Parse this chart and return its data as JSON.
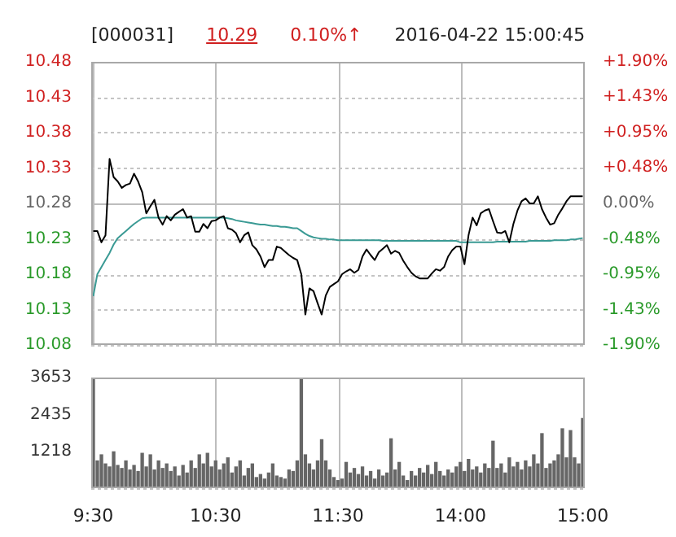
{
  "chart_data": [
    {
      "type": "line",
      "title": "[000031]",
      "annotations": [
        "10.29",
        "0.10%↑",
        "2016-04-22 15:00:45"
      ],
      "categories": [
        null,
        null,
        null,
        null,
        null,
        null,
        null,
        null,
        null,
        null,
        null,
        null,
        null,
        null,
        null,
        null,
        null,
        null,
        null,
        null,
        null,
        null,
        null,
        null,
        null,
        null,
        null,
        null,
        null,
        null,
        null,
        null,
        null,
        null,
        null,
        null,
        null,
        null,
        null,
        null,
        null,
        null,
        null,
        null,
        null,
        null,
        null,
        null,
        null,
        null,
        null,
        null,
        null,
        null,
        null,
        null,
        null,
        null,
        null,
        null,
        null,
        null,
        null,
        null,
        null,
        null,
        null,
        null,
        null,
        null,
        null,
        null,
        null,
        null,
        null,
        null,
        null,
        null,
        null,
        null,
        null,
        null,
        null,
        null,
        null,
        null,
        null,
        null,
        null,
        null,
        null,
        null,
        null,
        null,
        null,
        null,
        null,
        null,
        null,
        null,
        null,
        null,
        null,
        null,
        null,
        null,
        null,
        null,
        null,
        null,
        null,
        null,
        null,
        null,
        null,
        null,
        null,
        null,
        null,
        null,
        null
      ],
      "ylim": [
        10.08,
        10.48
      ],
      "yticks": [
        10.08,
        10.13,
        10.18,
        10.23,
        10.28,
        10.33,
        10.38,
        10.43,
        10.48
      ],
      "y2lim": [
        -1.9,
        1.9
      ],
      "y2ticks": [
        {
          "value": -1.9,
          "label": "-1.90%"
        },
        {
          "value": -1.43,
          "label": "-1.43%"
        },
        {
          "value": -0.95,
          "label": "-0.95%"
        },
        {
          "value": -0.48,
          "label": "-0.48%"
        },
        {
          "value": 0,
          "label": "0.00%"
        },
        {
          "value": 0.48,
          "label": "+0.48%"
        },
        {
          "value": 0.95,
          "label": "+0.95%"
        },
        {
          "value": 1.43,
          "label": "+1.43%"
        },
        {
          "value": 1.9,
          "label": "+1.90%"
        }
      ],
      "tick_labels": "y",
      "grid": true,
      "marker": "none",
      "line_style": "solid",
      "series": [
        {
          "color": "#000000",
          "values": [
            10.241,
            10.241,
            10.225,
            10.235,
            10.343,
            10.317,
            10.311,
            10.302,
            10.306,
            10.308,
            10.322,
            10.311,
            10.296,
            10.266,
            10.276,
            10.285,
            10.26,
            10.25,
            10.262,
            10.256,
            10.264,
            10.268,
            10.272,
            10.26,
            10.262,
            10.24,
            10.24,
            10.251,
            10.245,
            10.255,
            10.256,
            10.26,
            10.262,
            10.245,
            10.243,
            10.238,
            10.225,
            10.235,
            10.239,
            10.221,
            10.215,
            10.205,
            10.19,
            10.2,
            10.2,
            10.219,
            10.217,
            10.212,
            10.207,
            10.203,
            10.2,
            10.18,
            10.123,
            10.16,
            10.156,
            10.139,
            10.123,
            10.15,
            10.162,
            10.166,
            10.17,
            10.18,
            10.184,
            10.187,
            10.182,
            10.186,
            10.205,
            10.215,
            10.207,
            10.2,
            10.211,
            10.216,
            10.221,
            10.209,
            10.213,
            10.21,
            10.199,
            10.19,
            10.182,
            10.177,
            10.174,
            10.174,
            10.174,
            10.181,
            10.187,
            10.185,
            10.19,
            10.205,
            10.214,
            10.219,
            10.219,
            10.194,
            10.235,
            10.26,
            10.249,
            10.266,
            10.27,
            10.272,
            10.255,
            10.239,
            10.238,
            10.241,
            10.225,
            10.251,
            10.27,
            10.283,
            10.287,
            10.28,
            10.28,
            10.29,
            10.272,
            10.26,
            10.25,
            10.252,
            10.264,
            10.273,
            10.283,
            10.29,
            10.29,
            10.29,
            10.29
          ]
        },
        {
          "color": "#3a9a94",
          "values": [
            10.149,
            10.18,
            10.19,
            10.2,
            10.21,
            10.222,
            10.231,
            10.236,
            10.241,
            10.246,
            10.251,
            10.255,
            10.259,
            10.26,
            10.26,
            10.26,
            10.26,
            10.26,
            10.26,
            10.26,
            10.26,
            10.26,
            10.26,
            10.26,
            10.26,
            10.26,
            10.26,
            10.26,
            10.26,
            10.26,
            10.26,
            10.26,
            10.26,
            10.259,
            10.258,
            10.256,
            10.255,
            10.254,
            10.253,
            10.252,
            10.251,
            10.25,
            10.25,
            10.249,
            10.248,
            10.248,
            10.247,
            10.247,
            10.246,
            10.245,
            10.245,
            10.241,
            10.237,
            10.234,
            10.232,
            10.231,
            10.23,
            10.23,
            10.229,
            10.229,
            10.228,
            10.228,
            10.228,
            10.228,
            10.228,
            10.228,
            10.228,
            10.228,
            10.228,
            10.228,
            10.228,
            10.227,
            10.227,
            10.227,
            10.227,
            10.227,
            10.227,
            10.227,
            10.227,
            10.227,
            10.227,
            10.227,
            10.227,
            10.227,
            10.227,
            10.227,
            10.227,
            10.227,
            10.227,
            10.227,
            10.225,
            10.225,
            10.225,
            10.225,
            10.225,
            10.225,
            10.225,
            10.225,
            10.225,
            10.226,
            10.226,
            10.226,
            10.226,
            10.226,
            10.226,
            10.226,
            10.226,
            10.227,
            10.227,
            10.227,
            10.227,
            10.227,
            10.227,
            10.228,
            10.228,
            10.228,
            10.228,
            10.229,
            10.229,
            10.23,
            10.231
          ]
        }
      ]
    },
    {
      "type": "bar",
      "color": "#666666",
      "categories": [
        "9:30",
        null,
        null,
        null,
        null,
        null,
        null,
        null,
        null,
        null,
        null,
        null,
        null,
        null,
        null,
        null,
        null,
        null,
        null,
        null,
        null,
        null,
        null,
        null,
        null,
        null,
        null,
        null,
        null,
        null,
        "10:30",
        null,
        null,
        null,
        null,
        null,
        null,
        null,
        null,
        null,
        null,
        null,
        null,
        null,
        null,
        null,
        null,
        null,
        null,
        null,
        null,
        null,
        null,
        null,
        null,
        null,
        null,
        null,
        null,
        null,
        "11:30",
        null,
        null,
        null,
        null,
        null,
        null,
        null,
        null,
        null,
        null,
        null,
        null,
        null,
        null,
        null,
        null,
        null,
        null,
        null,
        null,
        null,
        null,
        null,
        null,
        null,
        null,
        null,
        null,
        null,
        "14:00",
        null,
        null,
        null,
        null,
        null,
        null,
        null,
        null,
        null,
        null,
        null,
        null,
        null,
        null,
        null,
        null,
        null,
        null,
        null,
        null,
        null,
        null,
        null,
        null,
        null,
        null,
        null,
        null,
        null,
        "15:00"
      ],
      "ylim": [
        0,
        3653
      ],
      "yticks": [
        {
          "value": 0,
          "label": null
        },
        1218,
        2435,
        3653
      ],
      "grid": true,
      "values": [
        3600,
        900,
        1100,
        800,
        700,
        1200,
        750,
        650,
        900,
        600,
        750,
        550,
        1150,
        700,
        1100,
        600,
        900,
        650,
        800,
        550,
        700,
        400,
        750,
        500,
        900,
        650,
        1100,
        800,
        1150,
        700,
        900,
        600,
        800,
        1000,
        500,
        700,
        900,
        400,
        650,
        800,
        350,
        450,
        300,
        500,
        800,
        400,
        350,
        300,
        600,
        550,
        900,
        3650,
        1100,
        800,
        600,
        900,
        1600,
        900,
        600,
        350,
        250,
        300,
        850,
        500,
        650,
        450,
        700,
        400,
        550,
        300,
        600,
        400,
        500,
        1630,
        600,
        850,
        400,
        250,
        550,
        400,
        650,
        500,
        750,
        450,
        850,
        550,
        400,
        600,
        500,
        700,
        850,
        550,
        950,
        600,
        700,
        500,
        800,
        650,
        1550,
        650,
        800,
        500,
        1000,
        700,
        850,
        600,
        900,
        700,
        1100,
        800,
        1800,
        650,
        800,
        900,
        1100,
        1960,
        1000,
        1900,
        1000,
        800,
        2300
      ]
    }
  ]
}
